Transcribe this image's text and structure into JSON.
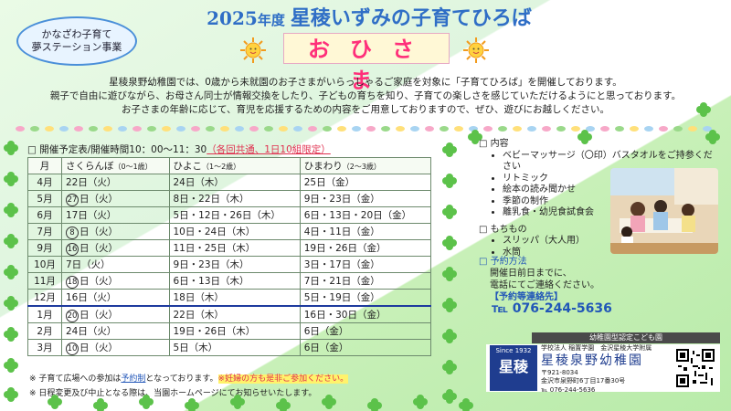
{
  "badge": {
    "line1": "かなざわ子育て",
    "line2": "夢ステーション事業"
  },
  "title": {
    "year": "2025",
    "nendo": "年度",
    "name": "星稜いずみの子育てひろば"
  },
  "subtitle": "おひさま",
  "intro": [
    "星稜泉野幼稚園では、0歳から未就園のお子さまがいらっしゃるご家庭を対象に「子育てひろば」を開催しております。",
    "親子で自由に遊びながら、お母さん同士が情報交換をしたり、子どもの育ちを知り、子育ての楽しさを感じていただけるようにと思っております。",
    "お子さまの年齢に応じて、育児を応援するための内容をご用意しておりますので、ぜひ、遊びにお越しください。"
  ],
  "schedule": {
    "heading": "□ 開催予定表/開催時間10：00～11：30",
    "heading_note": "（各回共通、1日10組限定）",
    "columns": [
      {
        "main": "月",
        "sub": ""
      },
      {
        "main": "さくらんぼ",
        "sub": "（0～1歳）"
      },
      {
        "main": "ひよこ",
        "sub": "（1～2歳）"
      },
      {
        "main": "ひまわり",
        "sub": "（2～3歳）"
      }
    ],
    "rows": [
      {
        "month": "4月",
        "sakura_circ": "",
        "sakura": "22日（火）",
        "hiyoko": "24日（木）",
        "himawari": "25日（金）"
      },
      {
        "month": "5月",
        "sakura_circ": "27",
        "sakura": "日（火）",
        "hiyoko": "8日・22日（木）",
        "himawari": "9日・23日（金）"
      },
      {
        "month": "6月",
        "sakura_circ": "",
        "sakura": "17日（火）",
        "hiyoko": "5日・12日・26日（木）",
        "himawari": "6日・13日・20日（金）"
      },
      {
        "month": "7月",
        "sakura_circ": "8",
        "sakura": "日（火）",
        "hiyoko": "10日・24日（木）",
        "himawari": "4日・11日（金）"
      },
      {
        "month": "9月",
        "sakura_circ": "16",
        "sakura": "日（火）",
        "hiyoko": "11日・25日（木）",
        "himawari": "19日・26日（金）"
      },
      {
        "month": "10月",
        "sakura_circ": "",
        "sakura": "7日（火）",
        "hiyoko": "9日・23日（木）",
        "himawari": "3日・17日（金）"
      },
      {
        "month": "11月",
        "sakura_circ": "18",
        "sakura": "日（火）",
        "hiyoko": "6日・13日（木）",
        "himawari": "7日・21日（金）"
      },
      {
        "month": "12月",
        "sakura_circ": "",
        "sakura": "16日（火）",
        "hiyoko": "18日（木）",
        "himawari": "5日・19日（金）"
      },
      {
        "month": "1月",
        "sakura_circ": "20",
        "sakura": "日（火）",
        "hiyoko": "22日（木）",
        "himawari": "16日・30日（金）"
      },
      {
        "month": "2月",
        "sakura_circ": "",
        "sakura": "24日（火）",
        "hiyoko": "19日・26日（木）",
        "himawari": "6日（金）"
      },
      {
        "month": "3月",
        "sakura_circ": "10",
        "sakura": "日（火）",
        "hiyoko": "5日（木）",
        "himawari": "6日（金）"
      }
    ]
  },
  "notes": {
    "n1_a": "※ 子育て広場への参加は",
    "n1_b": "予約制",
    "n1_c": "となっております。",
    "n1_d": "※妊婦の方も是非ご参加ください。",
    "n2": "※ 日程変更及び中止となる際は、当園ホームページにてお知らせいたします。"
  },
  "content": {
    "heading": "□ 内容",
    "items": [
      "ベビーマッサージ（〇印）バスタオルをご持参ください",
      "リトミック",
      "絵本の読み聞かせ",
      "季節の制作",
      "離乳食・幼児食試食会"
    ],
    "bring_heading": "□ もちもの",
    "bring": [
      "スリッパ（大人用）",
      "水筒"
    ]
  },
  "reserve": {
    "heading": "□ 予約方法",
    "line1": "開催日前日までに、",
    "line2": "電話にてご連絡ください。",
    "label": "【予約等連絡先】",
    "tel": "℡ 076-244-5636"
  },
  "footer": {
    "bar": "幼稚園型認定こども園",
    "since": "Since 1932",
    "logo": "星稜",
    "school_line1": "学校法人 稲置学園　金沢星稜大学附属",
    "school_name": "星稜泉野幼稚園",
    "zip": "〒921-8034",
    "addr": "金沢市泉野町6丁目17番30号",
    "tel": "℡ 076-244-5636"
  },
  "colors": {
    "title": "#2f6ec6",
    "pink": "#ff2f7a",
    "red": "#e0304f",
    "navy": "#1f3d8f"
  }
}
